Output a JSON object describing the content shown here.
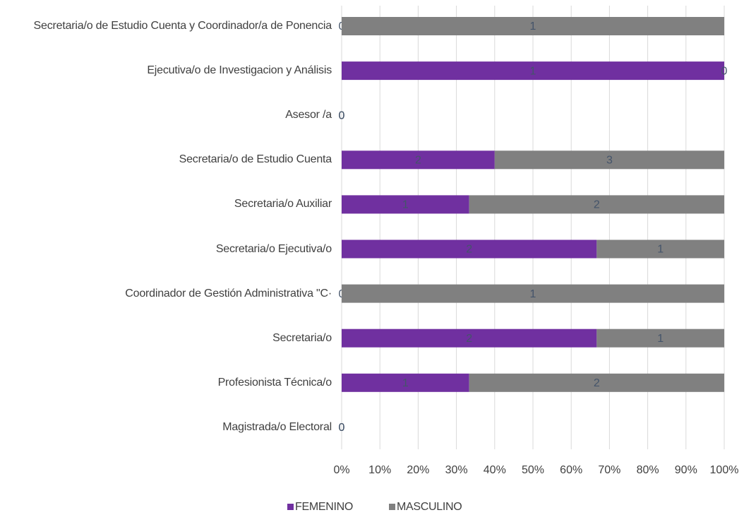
{
  "chart_data": {
    "type": "bar",
    "orientation": "horizontal",
    "stacked": "percent",
    "categories": [
      "Secretaria/o de Estudio Cuenta y Coordinador/a de Ponencia",
      "Ejecutiva/o de Investigacion y Análisis",
      "Asesor /a",
      "Secretaria/o de Estudio Cuenta",
      "Secretaria/o Auxiliar",
      "Secretaria/o Ejecutiva/o",
      "Coordinador de Gestión Administrativa \"C·",
      "Secretaria/o",
      "Profesionista Técnica/o",
      "Magistrada/o Electoral"
    ],
    "series": [
      {
        "name": "FEMENINO",
        "color": "#7030a0",
        "values": [
          0,
          1,
          0,
          2,
          1,
          2,
          0,
          2,
          1,
          0
        ]
      },
      {
        "name": "MASCULINO",
        "color": "#808080",
        "values": [
          1,
          0,
          0,
          3,
          2,
          1,
          1,
          1,
          2,
          0
        ]
      }
    ],
    "xlim": [
      0,
      100
    ],
    "xticks": [
      {
        "value": 0,
        "label": "0%"
      },
      {
        "value": 10,
        "label": "10%"
      },
      {
        "value": 20,
        "label": "20%"
      },
      {
        "value": 30,
        "label": "30%"
      },
      {
        "value": 40,
        "label": "40%"
      },
      {
        "value": 50,
        "label": "50%"
      },
      {
        "value": 60,
        "label": "60%"
      },
      {
        "value": 70,
        "label": "70%"
      },
      {
        "value": 80,
        "label": "80%"
      },
      {
        "value": 90,
        "label": "90%"
      },
      {
        "value": 100,
        "label": "100%"
      }
    ],
    "grid": true,
    "legend": "bottom"
  }
}
